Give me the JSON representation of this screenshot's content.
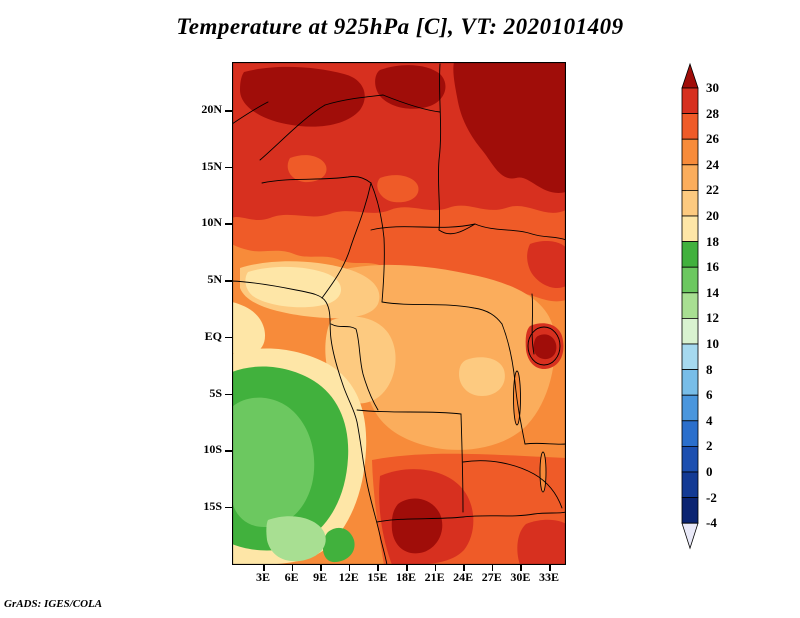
{
  "title": "Temperature at 925hPa [C], VT: 2020101409",
  "credit": "GrADS: IGES/COLA",
  "chart_data": {
    "type": "heatmap",
    "title": "Temperature at 925hPa [C], VT: 2020101409",
    "variable": "Temperature",
    "pressure_level": "925hPa",
    "units": "C",
    "valid_time": "2020101409",
    "x_ticks": [
      "3E",
      "6E",
      "9E",
      "12E",
      "15E",
      "18E",
      "21E",
      "24E",
      "27E",
      "30E",
      "33E"
    ],
    "y_ticks": [
      "20N",
      "15N",
      "10N",
      "5N",
      "EQ",
      "5S",
      "10S",
      "15S"
    ],
    "legend_position": "right",
    "legend_levels": [
      "30",
      "28",
      "26",
      "24",
      "22",
      "20",
      "18",
      "16",
      "14",
      "12",
      "10",
      "8",
      "6",
      "4",
      "2",
      "0",
      "-2",
      "-4"
    ],
    "legend_colors": [
      "#a00d09",
      "#d7301f",
      "#ef5b28",
      "#f78b3a",
      "#fbad5c",
      "#fdca80",
      "#fee6a7",
      "#41b13d",
      "#6cc860",
      "#a8df92",
      "#d9f2d0",
      "#a6d9ef",
      "#78bde8",
      "#4a96dd",
      "#2b6fcc",
      "#1c4fb0",
      "#133a94",
      "#0b2472",
      "#e9e9f8"
    ],
    "approx_grid": {
      "lons_deg_east": [
        1,
        5,
        9,
        13,
        17,
        21,
        25,
        29,
        33
      ],
      "lats_deg_north": [
        22,
        18,
        14,
        10,
        6,
        2,
        -2,
        -6,
        -10,
        -14,
        -18
      ],
      "values": [
        [
          30,
          31,
          30,
          31,
          30,
          31,
          31,
          31,
          30
        ],
        [
          30,
          29,
          30,
          29,
          29,
          30,
          31,
          30,
          29
        ],
        [
          28,
          28,
          27,
          28,
          28,
          28,
          29,
          30,
          29
        ],
        [
          24,
          23,
          24,
          25,
          26,
          26,
          27,
          27,
          26
        ],
        [
          21,
          19,
          21,
          23,
          24,
          25,
          25,
          26,
          26
        ],
        [
          20,
          21,
          22,
          23,
          23,
          24,
          24,
          25,
          26
        ],
        [
          18,
          19,
          21,
          22,
          23,
          23,
          24,
          23,
          29
        ],
        [
          16,
          15,
          19,
          22,
          23,
          23,
          24,
          24,
          23
        ],
        [
          15,
          14,
          17,
          24,
          25,
          25,
          24,
          24,
          23
        ],
        [
          15,
          14,
          18,
          27,
          30,
          28,
          26,
          25,
          24
        ],
        [
          14,
          16,
          20,
          28,
          30,
          29,
          27,
          26,
          25
        ]
      ]
    }
  }
}
